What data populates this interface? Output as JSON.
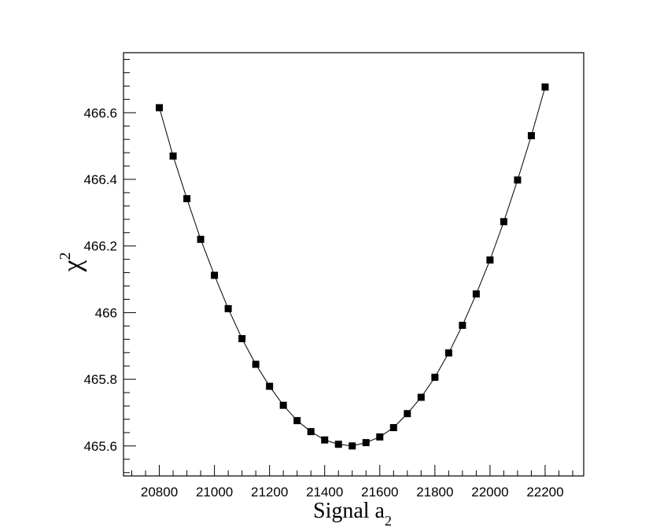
{
  "chart_data": {
    "type": "line",
    "title": "",
    "xlabel": "Signal a",
    "xlabel_subscript": "2",
    "ylabel": "χ",
    "ylabel_superscript": "2",
    "xlim": [
      20670,
      22340
    ],
    "ylim": [
      465.51,
      466.78
    ],
    "x_ticks": [
      20800,
      21000,
      21200,
      21400,
      21600,
      21800,
      22000,
      22200
    ],
    "x_tick_labels": [
      "20800",
      "21000",
      "21200",
      "21400",
      "21600",
      "21800",
      "22000",
      "22200"
    ],
    "y_ticks": [
      465.6,
      465.8,
      466,
      466.2,
      466.4,
      466.6
    ],
    "y_tick_labels": [
      "465.6",
      "465.8",
      "466",
      "466.2",
      "466.4",
      "466.6"
    ],
    "grid": false,
    "legend": "none",
    "marker": "square",
    "color": "#000000",
    "series": [
      {
        "x": [
          20800,
          20850,
          20900,
          20950,
          21000,
          21050,
          21100,
          21150,
          21200,
          21250,
          21300,
          21350,
          21400,
          21450,
          21500,
          21550,
          21600,
          21650,
          21700,
          21750,
          21800,
          21850,
          21900,
          21950,
          22000,
          22050,
          22100,
          22150,
          22200
        ],
        "y": [
          466.615,
          466.47,
          466.342,
          466.22,
          466.112,
          466.012,
          465.922,
          465.845,
          465.779,
          465.722,
          465.676,
          465.643,
          465.618,
          465.605,
          465.6,
          465.61,
          465.627,
          465.655,
          465.697,
          465.746,
          465.806,
          465.879,
          465.962,
          466.056,
          466.158,
          466.273,
          466.398,
          466.531,
          466.677
        ]
      }
    ]
  }
}
